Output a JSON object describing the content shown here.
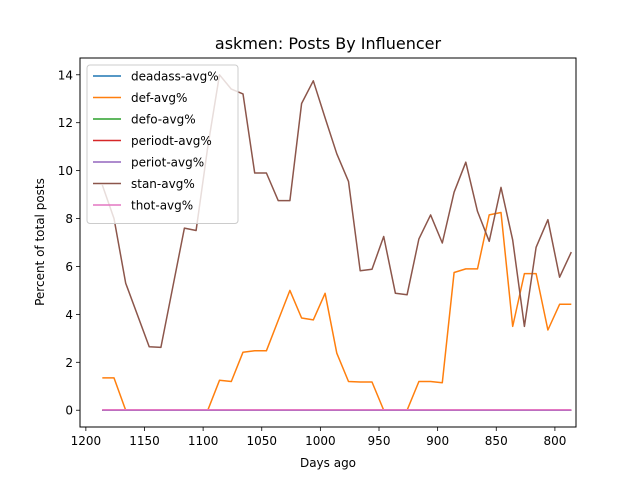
{
  "chart_data": {
    "type": "line",
    "title": "askmen: Posts By Influencer",
    "xlabel": "Days ago",
    "ylabel": "Percent of total posts",
    "xlim": [
      1205,
      782
    ],
    "ylim": [
      -0.7,
      14.7
    ],
    "x_inverted": true,
    "xticks": [
      1200,
      1150,
      1100,
      1050,
      1000,
      950,
      900,
      850,
      800
    ],
    "yticks": [
      0,
      2,
      4,
      6,
      8,
      10,
      12,
      14
    ],
    "grid": false,
    "legend_position": "top-left",
    "x": [
      1186,
      1176,
      1166,
      1146,
      1136,
      1126,
      1116,
      1106,
      1096,
      1086,
      1076,
      1066,
      1056,
      1046,
      1036,
      1026,
      1016,
      1006,
      996,
      986,
      976,
      966,
      956,
      946,
      936,
      926,
      916,
      906,
      896,
      886,
      876,
      866,
      856,
      846,
      836,
      826,
      816,
      806,
      796,
      786
    ],
    "series": [
      {
        "name": "deadass-avg%",
        "color": "#1f77b4",
        "values": [
          0,
          0,
          0,
          0,
          0,
          0,
          0,
          0,
          0,
          0,
          0,
          0,
          0,
          0,
          0,
          0,
          0,
          0,
          0,
          0,
          0,
          0,
          0,
          0,
          0,
          0,
          0,
          0,
          0,
          0,
          0,
          0,
          0,
          0,
          0,
          0,
          0,
          0,
          0,
          0
        ]
      },
      {
        "name": "def-avg%",
        "color": "#ff7f0e",
        "values": [
          1.35,
          1.35,
          0,
          0,
          0,
          0,
          0,
          0,
          0,
          1.25,
          1.2,
          2.42,
          2.48,
          2.48,
          3.75,
          5.0,
          3.85,
          3.77,
          4.88,
          2.38,
          1.2,
          1.18,
          1.18,
          0,
          0,
          0,
          1.2,
          1.2,
          1.15,
          5.75,
          5.9,
          5.9,
          8.15,
          8.25,
          3.5,
          5.7,
          5.7,
          3.35,
          4.42,
          4.42
        ]
      },
      {
        "name": "defo-avg%",
        "color": "#2ca02c",
        "values": [
          0,
          0,
          0,
          0,
          0,
          0,
          0,
          0,
          0,
          0,
          0,
          0,
          0,
          0,
          0,
          0,
          0,
          0,
          0,
          0,
          0,
          0,
          0,
          0,
          0,
          0,
          0,
          0,
          0,
          0,
          0,
          0,
          0,
          0,
          0,
          0,
          0,
          0,
          0,
          0
        ]
      },
      {
        "name": "periodt-avg%",
        "color": "#d62728",
        "values": [
          0,
          0,
          0,
          0,
          0,
          0,
          0,
          0,
          0,
          0,
          0,
          0,
          0,
          0,
          0,
          0,
          0,
          0,
          0,
          0,
          0,
          0,
          0,
          0,
          0,
          0,
          0,
          0,
          0,
          0,
          0,
          0,
          0,
          0,
          0,
          0,
          0,
          0,
          0,
          0
        ]
      },
      {
        "name": "periot-avg%",
        "color": "#9467bd",
        "values": [
          0,
          0,
          0,
          0,
          0,
          0,
          0,
          0,
          0,
          0,
          0,
          0,
          0,
          0,
          0,
          0,
          0,
          0,
          0,
          0,
          0,
          0,
          0,
          0,
          0,
          0,
          0,
          0,
          0,
          0,
          0,
          0,
          0,
          0,
          0,
          0,
          0,
          0,
          0,
          0
        ]
      },
      {
        "name": "stan-avg%",
        "color": "#8c564b",
        "values": [
          9.4,
          8.0,
          5.3,
          2.65,
          2.62,
          5.1,
          7.6,
          7.5,
          11.0,
          14.0,
          13.4,
          13.2,
          9.9,
          9.9,
          8.75,
          8.75,
          12.8,
          13.75,
          12.2,
          10.7,
          9.55,
          5.82,
          5.88,
          7.25,
          4.88,
          4.82,
          7.15,
          8.15,
          6.98,
          9.1,
          10.35,
          8.3,
          7.05,
          9.3,
          7.1,
          3.5,
          6.8,
          7.95,
          5.55,
          6.6
        ]
      },
      {
        "name": "thot-avg%",
        "color": "#e377c2",
        "values": [
          0.02,
          0.02,
          0.02,
          0.02,
          0.02,
          0.02,
          0.02,
          0.02,
          0.02,
          0.02,
          0.02,
          0.02,
          0.02,
          0.02,
          0.02,
          0.02,
          0.02,
          0.02,
          0.02,
          0.02,
          0.02,
          0.02,
          0.02,
          0.02,
          0.02,
          0.02,
          0.02,
          0.02,
          0.02,
          0.02,
          0.02,
          0.02,
          0.02,
          0.02,
          0.02,
          0.02,
          0.02,
          0.02,
          0.02,
          0.02
        ]
      }
    ]
  }
}
